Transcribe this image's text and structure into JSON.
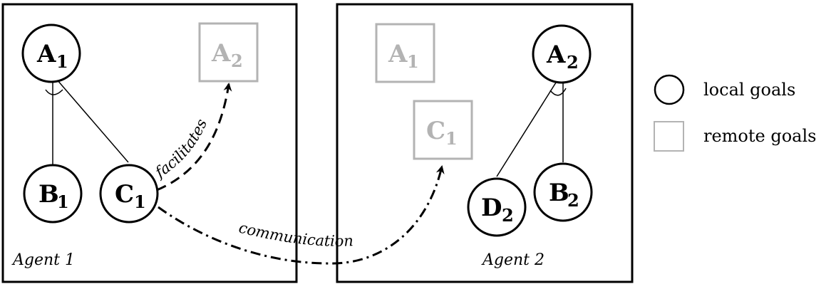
{
  "agents": [
    {
      "label": "Agent 1"
    },
    {
      "label": "Agent 2"
    }
  ],
  "nodes": {
    "a1_local": {
      "letter": "A",
      "sub": "1",
      "kind": "local"
    },
    "b1_local": {
      "letter": "B",
      "sub": "1",
      "kind": "local"
    },
    "c1_local": {
      "letter": "C",
      "sub": "1",
      "kind": "local"
    },
    "a2_remote_in_agent1": {
      "letter": "A",
      "sub": "2",
      "kind": "remote"
    },
    "a1_remote_in_agent2": {
      "letter": "A",
      "sub": "1",
      "kind": "remote"
    },
    "c1_remote_in_agent2": {
      "letter": "C",
      "sub": "1",
      "kind": "remote"
    },
    "a2_local": {
      "letter": "A",
      "sub": "2",
      "kind": "local"
    },
    "d2_local": {
      "letter": "D",
      "sub": "2",
      "kind": "local"
    },
    "b2_local": {
      "letter": "B",
      "sub": "2",
      "kind": "local"
    }
  },
  "edges": {
    "facilitates": "facilitates",
    "communication": "communication"
  },
  "legend": {
    "local": "local goals",
    "remote": "remote goals"
  },
  "colors": {
    "local_stroke": "#000000",
    "remote_stroke": "#b3b3b3",
    "remote_text": "#b3b3b3"
  }
}
